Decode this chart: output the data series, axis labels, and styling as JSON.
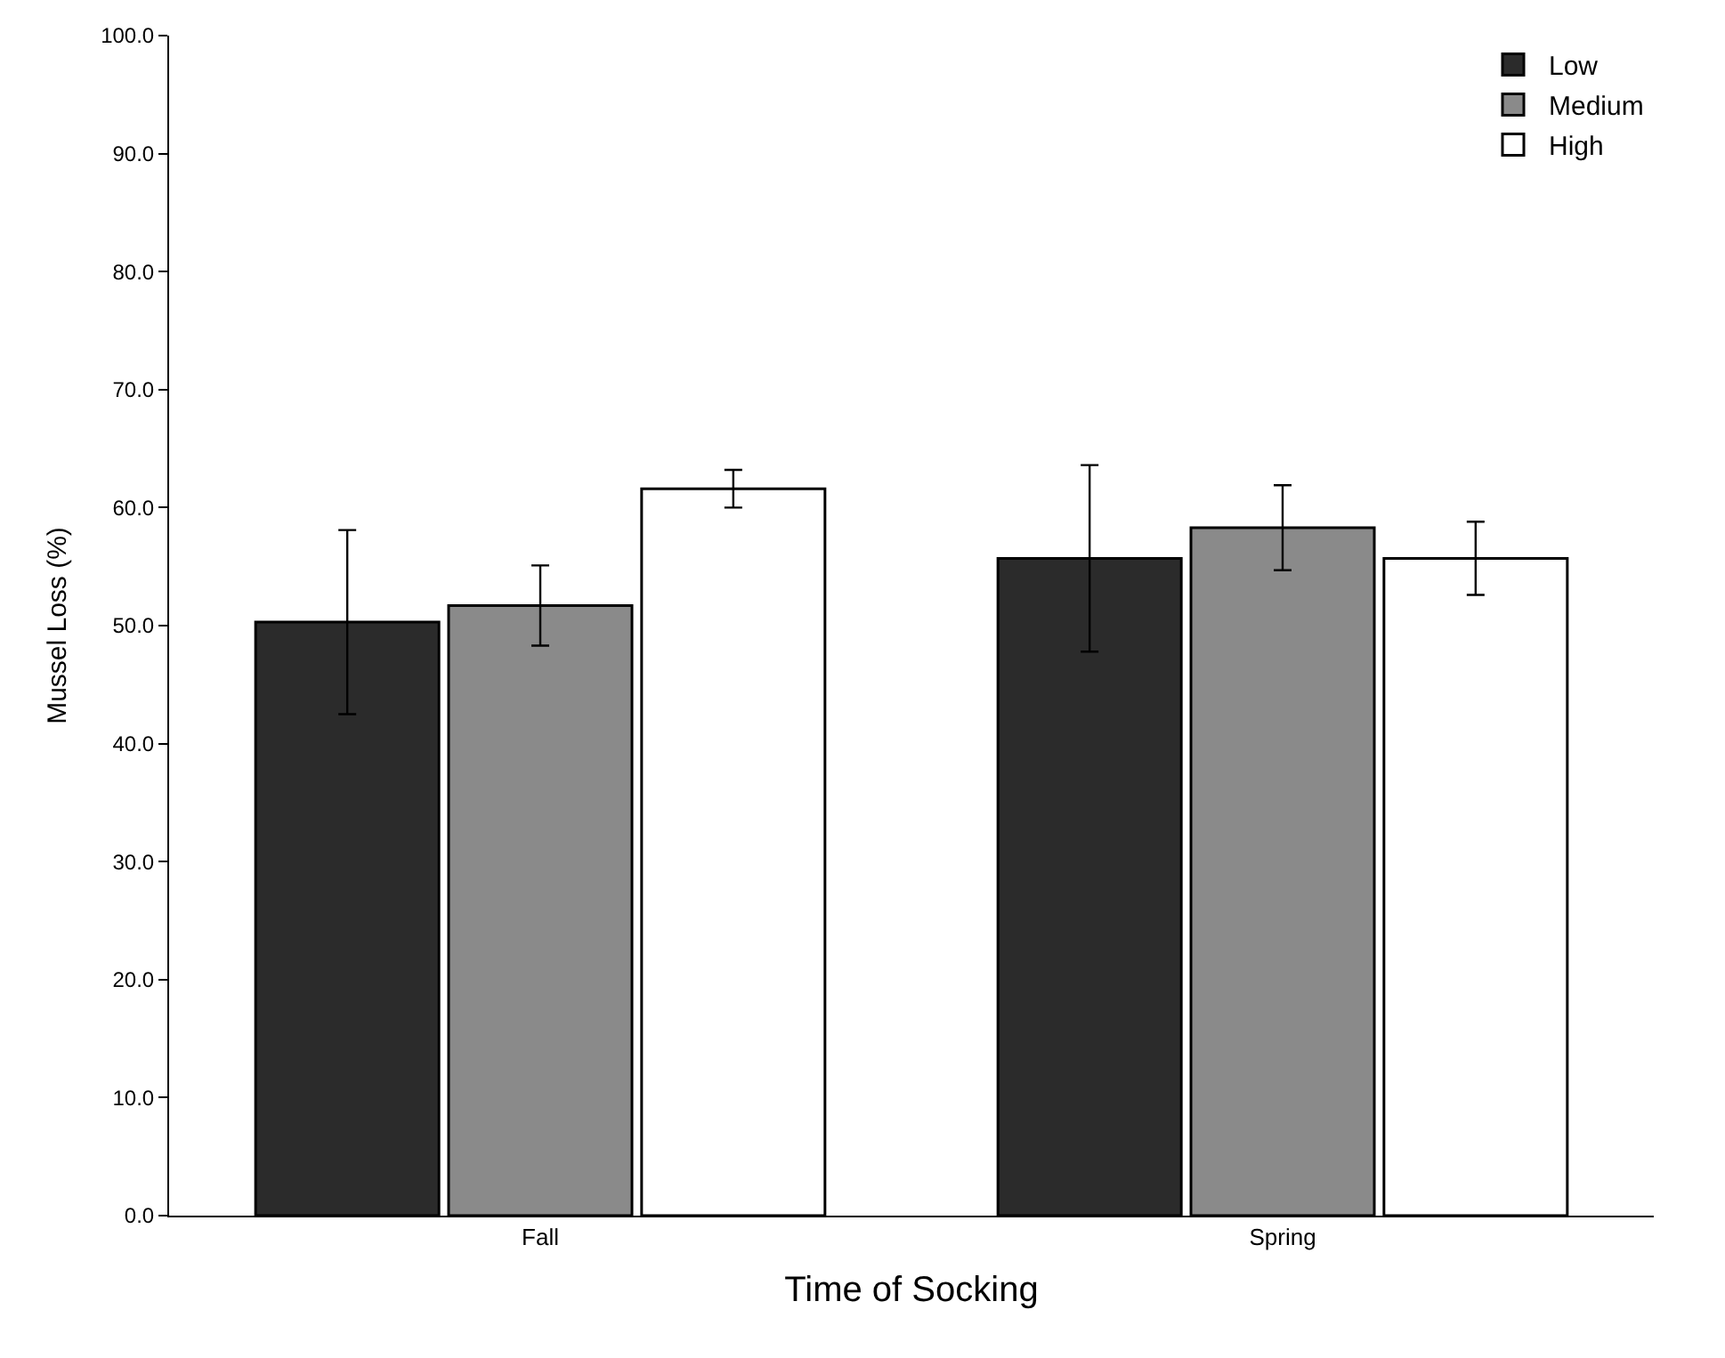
{
  "chart_data": {
    "type": "bar",
    "xlabel": "Time of Socking",
    "ylabel": "Mussel Loss (%)",
    "categories": [
      "Fall",
      "Spring"
    ],
    "series": [
      {
        "name": "Low",
        "color": "#2b2b2b",
        "values": [
          50.3,
          55.7
        ],
        "errors": [
          7.8,
          7.9
        ]
      },
      {
        "name": "Medium",
        "color": "#8a8a8a",
        "values": [
          51.7,
          58.3
        ],
        "errors": [
          3.4,
          3.6
        ]
      },
      {
        "name": "High",
        "color": "#ffffff",
        "values": [
          61.6,
          55.7
        ],
        "errors": [
          1.6,
          3.1
        ]
      }
    ],
    "ylim": [
      0,
      100
    ],
    "yticks": [
      {
        "value": 0,
        "label": "0.0"
      },
      {
        "value": 10,
        "label": "10.0"
      },
      {
        "value": 20,
        "label": "20.0"
      },
      {
        "value": 30,
        "label": "30.0"
      },
      {
        "value": 40,
        "label": "40.0"
      },
      {
        "value": 50,
        "label": "50.0"
      },
      {
        "value": 60,
        "label": "60.0"
      },
      {
        "value": 70,
        "label": "70.0"
      },
      {
        "value": 80,
        "label": "80.0"
      },
      {
        "value": 90,
        "label": "90.0"
      },
      {
        "value": 100,
        "label": "100.0"
      }
    ],
    "legend": "top right"
  }
}
